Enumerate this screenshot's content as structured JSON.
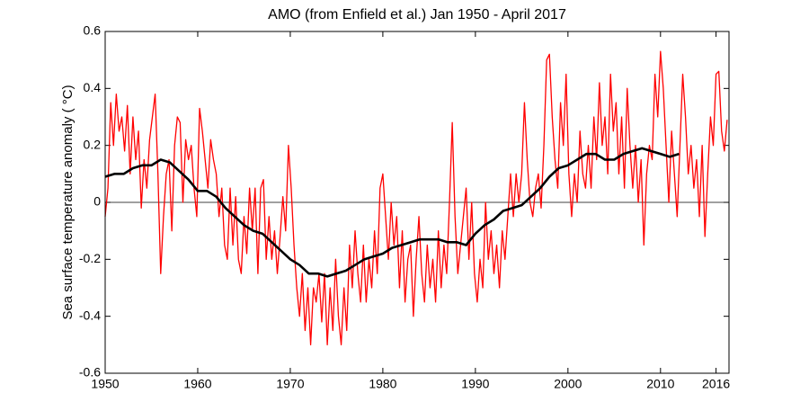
{
  "chart_data": {
    "type": "line",
    "title": "AMO (from Enfield et al.) Jan 1950 - April 2017",
    "ylabel": "Sea surface temperature anomaly ( °C)",
    "xlim": [
      1950,
      2017.4
    ],
    "xticks": [
      1950,
      1960,
      1970,
      1980,
      1990,
      2000,
      2010,
      2016
    ],
    "ylim": [
      -0.6,
      0.6
    ],
    "yticks": [
      0.6,
      0.4,
      0.2,
      0,
      -0.2,
      -0.4,
      -0.6
    ],
    "zero_line": true,
    "series": [
      {
        "color": "#ff0000",
        "width": 1.3,
        "x": [
          1950.0,
          1950.3,
          1950.6,
          1950.9,
          1951.2,
          1951.5,
          1951.8,
          1952.1,
          1952.4,
          1952.7,
          1953.0,
          1953.3,
          1953.6,
          1953.9,
          1954.2,
          1954.5,
          1954.8,
          1955.1,
          1955.4,
          1955.7,
          1956.0,
          1956.3,
          1956.6,
          1956.9,
          1957.2,
          1957.5,
          1957.8,
          1958.1,
          1958.4,
          1958.7,
          1959.0,
          1959.3,
          1959.6,
          1959.9,
          1960.2,
          1960.5,
          1960.8,
          1961.1,
          1961.4,
          1961.7,
          1962.0,
          1962.3,
          1962.6,
          1962.9,
          1963.2,
          1963.5,
          1963.8,
          1964.1,
          1964.4,
          1964.7,
          1965.0,
          1965.3,
          1965.6,
          1965.9,
          1966.2,
          1966.5,
          1966.8,
          1967.1,
          1967.4,
          1967.7,
          1968.0,
          1968.3,
          1968.6,
          1968.9,
          1969.2,
          1969.5,
          1969.8,
          1970.1,
          1970.4,
          1970.7,
          1971.0,
          1971.3,
          1971.6,
          1971.9,
          1972.2,
          1972.5,
          1972.8,
          1973.1,
          1973.4,
          1973.7,
          1974.0,
          1974.3,
          1974.6,
          1974.9,
          1975.2,
          1975.5,
          1975.8,
          1976.1,
          1976.4,
          1976.7,
          1977.0,
          1977.3,
          1977.6,
          1977.9,
          1978.2,
          1978.5,
          1978.8,
          1979.1,
          1979.4,
          1979.7,
          1980.0,
          1980.3,
          1980.6,
          1980.9,
          1981.2,
          1981.5,
          1981.8,
          1982.1,
          1982.4,
          1982.7,
          1983.0,
          1983.3,
          1983.6,
          1983.9,
          1984.2,
          1984.5,
          1984.8,
          1985.1,
          1985.4,
          1985.7,
          1986.0,
          1986.3,
          1986.6,
          1986.9,
          1987.2,
          1987.5,
          1987.8,
          1988.1,
          1988.4,
          1988.7,
          1989.0,
          1989.3,
          1989.6,
          1989.9,
          1990.2,
          1990.5,
          1990.8,
          1991.1,
          1991.4,
          1991.7,
          1992.0,
          1992.3,
          1992.6,
          1992.9,
          1993.2,
          1993.5,
          1993.8,
          1994.1,
          1994.4,
          1994.7,
          1995.0,
          1995.3,
          1995.6,
          1995.9,
          1996.2,
          1996.5,
          1996.8,
          1997.1,
          1997.4,
          1997.7,
          1998.0,
          1998.3,
          1998.6,
          1998.9,
          1999.2,
          1999.5,
          1999.8,
          2000.1,
          2000.4,
          2000.7,
          2001.0,
          2001.3,
          2001.6,
          2001.9,
          2002.2,
          2002.5,
          2002.8,
          2003.1,
          2003.4,
          2003.7,
          2004.0,
          2004.3,
          2004.6,
          2004.9,
          2005.2,
          2005.5,
          2005.8,
          2006.1,
          2006.4,
          2006.7,
          2007.0,
          2007.3,
          2007.6,
          2007.9,
          2008.2,
          2008.5,
          2008.8,
          2009.1,
          2009.4,
          2009.7,
          2010.0,
          2010.3,
          2010.6,
          2010.9,
          2011.2,
          2011.5,
          2011.8,
          2012.1,
          2012.4,
          2012.7,
          2013.0,
          2013.3,
          2013.6,
          2013.9,
          2014.2,
          2014.5,
          2014.8,
          2015.1,
          2015.4,
          2015.7,
          2016.0,
          2016.3,
          2016.6,
          2016.9,
          2017.2
        ],
        "values": [
          -0.05,
          0.05,
          0.35,
          0.2,
          0.38,
          0.25,
          0.3,
          0.18,
          0.34,
          0.1,
          0.3,
          0.15,
          0.25,
          -0.02,
          0.15,
          0.05,
          0.22,
          0.3,
          0.38,
          0.1,
          -0.25,
          -0.05,
          0.1,
          0.15,
          -0.1,
          0.2,
          0.3,
          0.28,
          0.0,
          0.22,
          0.15,
          0.2,
          0.05,
          -0.05,
          0.33,
          0.25,
          0.15,
          0.05,
          0.22,
          0.15,
          0.1,
          -0.05,
          0.05,
          -0.15,
          -0.2,
          0.05,
          -0.15,
          0.02,
          -0.2,
          -0.25,
          -0.05,
          -0.18,
          0.05,
          -0.1,
          0.05,
          -0.25,
          0.05,
          0.08,
          -0.2,
          -0.05,
          -0.2,
          -0.1,
          -0.25,
          -0.12,
          0.02,
          -0.1,
          0.2,
          0.05,
          -0.15,
          -0.3,
          -0.4,
          -0.25,
          -0.45,
          -0.3,
          -0.5,
          -0.3,
          -0.35,
          -0.25,
          -0.42,
          -0.25,
          -0.5,
          -0.3,
          -0.45,
          -0.2,
          -0.4,
          -0.5,
          -0.3,
          -0.45,
          -0.15,
          -0.3,
          -0.1,
          -0.25,
          -0.35,
          -0.15,
          -0.35,
          -0.2,
          -0.3,
          -0.1,
          -0.25,
          0.05,
          0.1,
          -0.05,
          -0.2,
          0.0,
          -0.15,
          -0.05,
          -0.3,
          -0.1,
          -0.35,
          -0.2,
          -0.15,
          -0.4,
          -0.2,
          -0.05,
          -0.25,
          -0.35,
          -0.15,
          -0.3,
          -0.2,
          -0.35,
          -0.1,
          -0.3,
          -0.15,
          -0.25,
          0.0,
          0.28,
          -0.05,
          -0.25,
          -0.15,
          -0.05,
          0.05,
          -0.2,
          0.0,
          -0.25,
          -0.35,
          -0.2,
          -0.3,
          0.0,
          -0.2,
          -0.1,
          -0.25,
          -0.15,
          -0.3,
          -0.1,
          -0.2,
          -0.05,
          0.1,
          -0.05,
          0.1,
          0.0,
          0.1,
          0.35,
          0.15,
          0.0,
          -0.05,
          0.05,
          0.1,
          -0.02,
          0.2,
          0.5,
          0.52,
          0.3,
          0.15,
          0.05,
          0.35,
          0.2,
          0.45,
          0.1,
          -0.05,
          0.1,
          0.0,
          0.25,
          0.1,
          0.05,
          0.2,
          0.05,
          0.3,
          0.15,
          0.42,
          0.2,
          0.3,
          0.1,
          0.45,
          0.25,
          0.35,
          0.1,
          0.3,
          0.05,
          0.4,
          0.2,
          0.05,
          0.2,
          0.0,
          0.15,
          -0.15,
          0.1,
          0.2,
          0.15,
          0.45,
          0.3,
          0.53,
          0.4,
          0.2,
          0.0,
          0.25,
          0.1,
          -0.05,
          0.2,
          0.45,
          0.3,
          0.1,
          0.2,
          0.05,
          0.15,
          -0.05,
          0.2,
          -0.12,
          0.1,
          0.3,
          0.2,
          0.45,
          0.46,
          0.25,
          0.18,
          0.29
        ]
      },
      {
        "color": "#000000",
        "width": 2.6,
        "x": [
          1950,
          1951,
          1952,
          1953,
          1954,
          1955,
          1956,
          1957,
          1958,
          1959,
          1960,
          1961,
          1962,
          1963,
          1964,
          1965,
          1966,
          1967,
          1968,
          1969,
          1970,
          1971,
          1972,
          1973,
          1974,
          1975,
          1976,
          1977,
          1978,
          1979,
          1980,
          1981,
          1982,
          1983,
          1984,
          1985,
          1986,
          1987,
          1988,
          1989,
          1990,
          1991,
          1992,
          1993,
          1994,
          1995,
          1996,
          1997,
          1998,
          1999,
          2000,
          2001,
          2002,
          2003,
          2004,
          2005,
          2006,
          2007,
          2008,
          2009,
          2010,
          2011,
          2012
        ],
        "values": [
          0.09,
          0.1,
          0.1,
          0.12,
          0.13,
          0.13,
          0.15,
          0.14,
          0.11,
          0.08,
          0.04,
          0.04,
          0.02,
          -0.02,
          -0.05,
          -0.08,
          -0.1,
          -0.11,
          -0.14,
          -0.17,
          -0.2,
          -0.22,
          -0.25,
          -0.25,
          -0.26,
          -0.25,
          -0.24,
          -0.22,
          -0.2,
          -0.19,
          -0.18,
          -0.16,
          -0.15,
          -0.14,
          -0.13,
          -0.13,
          -0.13,
          -0.14,
          -0.14,
          -0.15,
          -0.11,
          -0.08,
          -0.06,
          -0.03,
          -0.02,
          -0.01,
          0.02,
          0.05,
          0.09,
          0.12,
          0.13,
          0.15,
          0.17,
          0.17,
          0.15,
          0.15,
          0.17,
          0.18,
          0.19,
          0.18,
          0.17,
          0.16,
          0.17
        ]
      }
    ]
  }
}
